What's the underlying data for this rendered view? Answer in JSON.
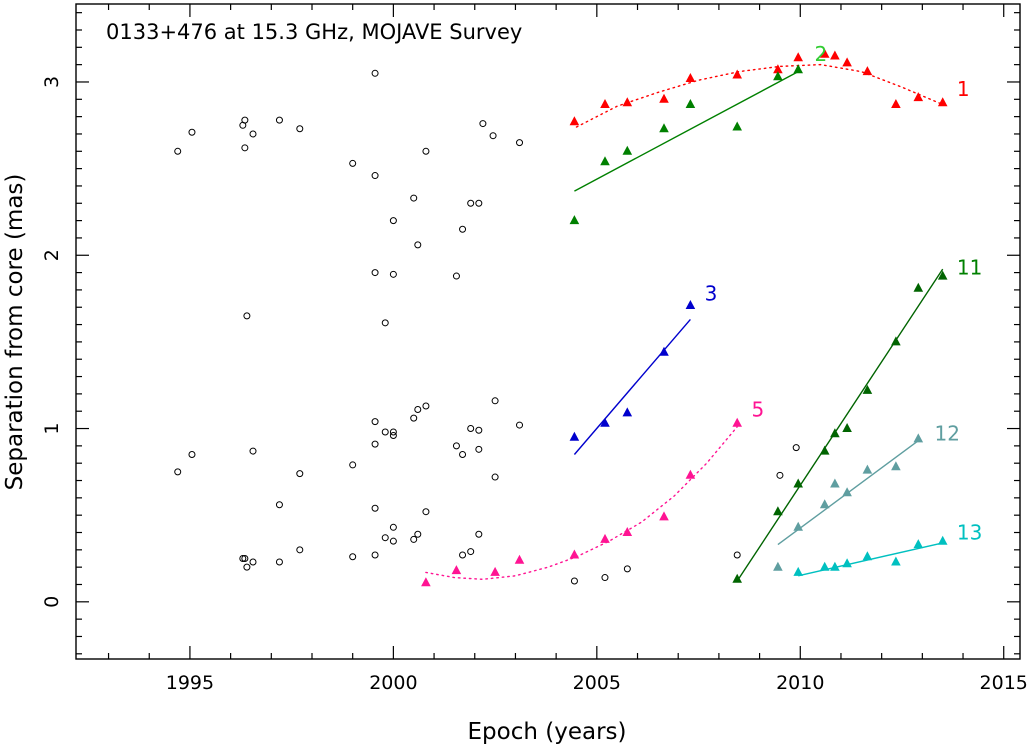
{
  "chart_data": {
    "type": "scatter",
    "title": "0133+476 at 15.3 GHz, MOJAVE Survey",
    "xlabel": "Epoch (years)",
    "ylabel": "Separation from core (mas)",
    "xlim": [
      1992.2,
      2015.4
    ],
    "ylim": [
      -0.33,
      3.45
    ],
    "x_ticks": [
      1995,
      2000,
      2005,
      2010,
      2015
    ],
    "x_tick_labels": [
      "1995",
      "2000",
      "2005",
      "2010",
      "2015"
    ],
    "y_ticks": [
      0,
      1,
      2,
      3
    ],
    "y_tick_labels": [
      "0",
      "1",
      "2",
      "3"
    ],
    "grid": false,
    "legend": "none",
    "unassigned": {
      "marker": "open-circle",
      "color": "#000000",
      "points": [
        [
          1994.7,
          2.6
        ],
        [
          1994.7,
          0.75
        ],
        [
          1995.05,
          2.71
        ],
        [
          1995.05,
          0.85
        ],
        [
          1996.3,
          2.75
        ],
        [
          1996.35,
          2.78
        ],
        [
          1996.35,
          2.62
        ],
        [
          1996.4,
          1.65
        ],
        [
          1996.3,
          0.25
        ],
        [
          1996.35,
          0.25
        ],
        [
          1996.4,
          0.2
        ],
        [
          1996.55,
          2.7
        ],
        [
          1996.55,
          0.87
        ],
        [
          1996.55,
          0.23
        ],
        [
          1997.2,
          2.78
        ],
        [
          1997.2,
          0.56
        ],
        [
          1997.2,
          0.23
        ],
        [
          1997.7,
          2.73
        ],
        [
          1997.7,
          0.74
        ],
        [
          1997.7,
          0.3
        ],
        [
          1999.0,
          2.53
        ],
        [
          1999.0,
          0.79
        ],
        [
          1999.0,
          0.26
        ],
        [
          1999.55,
          3.05
        ],
        [
          1999.55,
          2.46
        ],
        [
          1999.55,
          1.9
        ],
        [
          1999.55,
          1.04
        ],
        [
          1999.55,
          0.91
        ],
        [
          1999.55,
          0.54
        ],
        [
          1999.55,
          0.27
        ],
        [
          1999.8,
          1.61
        ],
        [
          1999.8,
          0.98
        ],
        [
          1999.8,
          0.37
        ],
        [
          2000.0,
          2.2
        ],
        [
          2000.0,
          1.89
        ],
        [
          2000.0,
          0.98
        ],
        [
          2000.0,
          0.96
        ],
        [
          2000.0,
          0.43
        ],
        [
          2000.0,
          0.35
        ],
        [
          2000.5,
          2.33
        ],
        [
          2000.5,
          1.06
        ],
        [
          2000.5,
          0.36
        ],
        [
          2000.6,
          2.06
        ],
        [
          2000.6,
          1.11
        ],
        [
          2000.6,
          0.39
        ],
        [
          2000.8,
          2.6
        ],
        [
          2000.8,
          1.13
        ],
        [
          2000.8,
          0.52
        ],
        [
          2001.55,
          1.88
        ],
        [
          2001.55,
          0.9
        ],
        [
          2001.7,
          2.15
        ],
        [
          2001.7,
          0.85
        ],
        [
          2001.7,
          0.27
        ],
        [
          2001.9,
          2.3
        ],
        [
          2001.9,
          1.0
        ],
        [
          2001.9,
          0.29
        ],
        [
          2002.1,
          2.3
        ],
        [
          2002.1,
          0.99
        ],
        [
          2002.1,
          0.88
        ],
        [
          2002.1,
          0.39
        ],
        [
          2002.2,
          2.76
        ],
        [
          2002.45,
          2.69
        ],
        [
          2002.5,
          1.16
        ],
        [
          2002.5,
          0.72
        ],
        [
          2003.1,
          2.65
        ],
        [
          2003.1,
          1.02
        ],
        [
          2004.45,
          0.12
        ],
        [
          2005.2,
          0.14
        ],
        [
          2005.75,
          0.19
        ],
        [
          2008.45,
          0.27
        ],
        [
          2009.5,
          0.73
        ],
        [
          2009.9,
          0.89
        ]
      ]
    },
    "series": [
      {
        "name": "1",
        "color": "#ff0000",
        "marker": "triangle",
        "fit": "dotted",
        "x": [
          2004.45,
          2005.2,
          2005.75,
          2006.65,
          2007.3,
          2008.45,
          2009.45,
          2009.95,
          2010.6,
          2010.85,
          2011.15,
          2011.65,
          2012.35,
          2012.9,
          2013.5
        ],
        "y": [
          2.77,
          2.87,
          2.88,
          2.9,
          3.02,
          3.04,
          3.07,
          3.14,
          3.16,
          3.15,
          3.11,
          3.06,
          2.87,
          2.91,
          2.88
        ],
        "fit_points": [
          [
            2004.5,
            2.74
          ],
          [
            2005.5,
            2.86
          ],
          [
            2006.5,
            2.94
          ],
          [
            2007.5,
            3.01
          ],
          [
            2008.5,
            3.06
          ],
          [
            2009.5,
            3.09
          ],
          [
            2010.5,
            3.1
          ],
          [
            2011.5,
            3.06
          ],
          [
            2012.5,
            2.97
          ],
          [
            2013.5,
            2.87
          ]
        ]
      },
      {
        "name": "2",
        "color": "#008000",
        "marker": "triangle",
        "fit": "solid",
        "x": [
          2004.45,
          2005.2,
          2005.75,
          2006.65,
          2007.3,
          2008.45,
          2009.45,
          2009.95
        ],
        "y": [
          2.2,
          2.54,
          2.6,
          2.73,
          2.87,
          2.74,
          3.03,
          3.07
        ],
        "fit_points": [
          [
            2004.45,
            2.37
          ],
          [
            2009.95,
            3.06
          ]
        ]
      },
      {
        "name": "3",
        "color": "#0000cd",
        "marker": "triangle",
        "fit": "solid",
        "x": [
          2004.45,
          2005.2,
          2005.75,
          2006.65,
          2007.3
        ],
        "y": [
          0.95,
          1.03,
          1.09,
          1.44,
          1.71
        ],
        "fit_points": [
          [
            2004.45,
            0.85
          ],
          [
            2007.3,
            1.63
          ]
        ]
      },
      {
        "name": "5",
        "color": "#ff1493",
        "marker": "triangle",
        "fit": "dotted",
        "x": [
          2000.8,
          2001.55,
          2002.5,
          2003.1,
          2004.45,
          2005.2,
          2005.75,
          2006.65,
          2007.3,
          2008.45
        ],
        "y": [
          0.11,
          0.18,
          0.17,
          0.24,
          0.27,
          0.36,
          0.4,
          0.49,
          0.73,
          1.03
        ],
        "fit_points": [
          [
            2000.8,
            0.17
          ],
          [
            2001.5,
            0.14
          ],
          [
            2002.2,
            0.13
          ],
          [
            2003.0,
            0.15
          ],
          [
            2003.8,
            0.2
          ],
          [
            2004.5,
            0.26
          ],
          [
            2005.3,
            0.35
          ],
          [
            2006.1,
            0.46
          ],
          [
            2006.9,
            0.61
          ],
          [
            2007.7,
            0.8
          ],
          [
            2008.45,
            1.01
          ]
        ]
      },
      {
        "name": "11",
        "color": "#006400",
        "marker": "triangle",
        "fit": "solid",
        "x": [
          2008.45,
          2009.45,
          2009.95,
          2010.6,
          2010.85,
          2011.15,
          2011.65,
          2012.35,
          2012.9,
          2013.5
        ],
        "y": [
          0.13,
          0.52,
          0.68,
          0.87,
          0.97,
          1.0,
          1.22,
          1.5,
          1.81,
          1.88
        ],
        "fit_points": [
          [
            2008.45,
            0.12
          ],
          [
            2013.5,
            1.92
          ]
        ]
      },
      {
        "name": "12",
        "color": "#5f9ea0",
        "marker": "triangle",
        "fit": "solid",
        "x": [
          2009.45,
          2009.95,
          2010.6,
          2010.85,
          2011.15,
          2011.65,
          2012.35,
          2012.9
        ],
        "y": [
          0.2,
          0.43,
          0.56,
          0.68,
          0.63,
          0.76,
          0.78,
          0.94
        ],
        "fit_points": [
          [
            2009.45,
            0.33
          ],
          [
            2012.9,
            0.93
          ]
        ]
      },
      {
        "name": "13",
        "color": "#00c0c0",
        "marker": "triangle",
        "fit": "solid",
        "x": [
          2009.95,
          2010.6,
          2010.85,
          2011.15,
          2011.65,
          2012.35,
          2012.9,
          2013.5
        ],
        "y": [
          0.17,
          0.2,
          0.2,
          0.22,
          0.26,
          0.23,
          0.33,
          0.35
        ],
        "fit_points": [
          [
            2009.95,
            0.15
          ],
          [
            2013.5,
            0.34
          ]
        ]
      }
    ],
    "series_labels": [
      {
        "text": "1",
        "color": "#ff0000",
        "x": 2013.85,
        "y": 2.92
      },
      {
        "text": "2",
        "color": "#32cd32",
        "x": 2010.35,
        "y": 3.12
      },
      {
        "text": "3",
        "color": "#0000cd",
        "x": 2007.65,
        "y": 1.74
      },
      {
        "text": "5",
        "color": "#ff1493",
        "x": 2008.8,
        "y": 1.07
      },
      {
        "text": "11",
        "color": "#008000",
        "x": 2013.85,
        "y": 1.89
      },
      {
        "text": "12",
        "color": "#5f9ea0",
        "x": 2013.3,
        "y": 0.93
      },
      {
        "text": "13",
        "color": "#00c0c0",
        "x": 2013.85,
        "y": 0.36
      }
    ]
  }
}
